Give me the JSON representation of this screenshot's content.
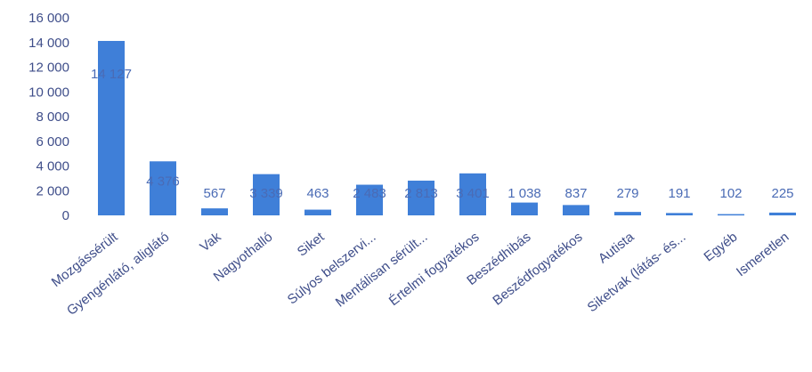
{
  "chart_data": {
    "type": "bar",
    "title": "",
    "xlabel": "",
    "ylabel": "",
    "ylim": [
      0,
      16000
    ],
    "y_ticks": [
      0,
      2000,
      4000,
      6000,
      8000,
      10000,
      12000,
      14000,
      16000
    ],
    "y_tick_labels": [
      "0",
      "2 000",
      "4 000",
      "6 000",
      "8 000",
      "10 000",
      "12 000",
      "14 000",
      "16 000"
    ],
    "grid": false,
    "legend": "none",
    "bar_color": "#3f7fd8",
    "categories": [
      "Mozgássérült",
      "Gyengénlátó, aliglátó",
      "Vak",
      "Nagyothalló",
      "Siket",
      "Súlyos belszervi...",
      "Mentálisan sérült...",
      "Értelmi fogyatékos",
      "Beszédhibás",
      "Beszédfogyatékos",
      "Autista",
      "Siketvak (látás- és...",
      "Egyéb",
      "Ismeretlen"
    ],
    "values": [
      14127,
      4376,
      567,
      3339,
      463,
      2483,
      2813,
      3401,
      1038,
      837,
      279,
      191,
      102,
      225
    ],
    "data_labels": [
      "14 127",
      "4 376",
      "567",
      "3 339",
      "463",
      "2 483",
      "2 813",
      "3 401",
      "1 038",
      "837",
      "279",
      "191",
      "102",
      "225"
    ]
  }
}
